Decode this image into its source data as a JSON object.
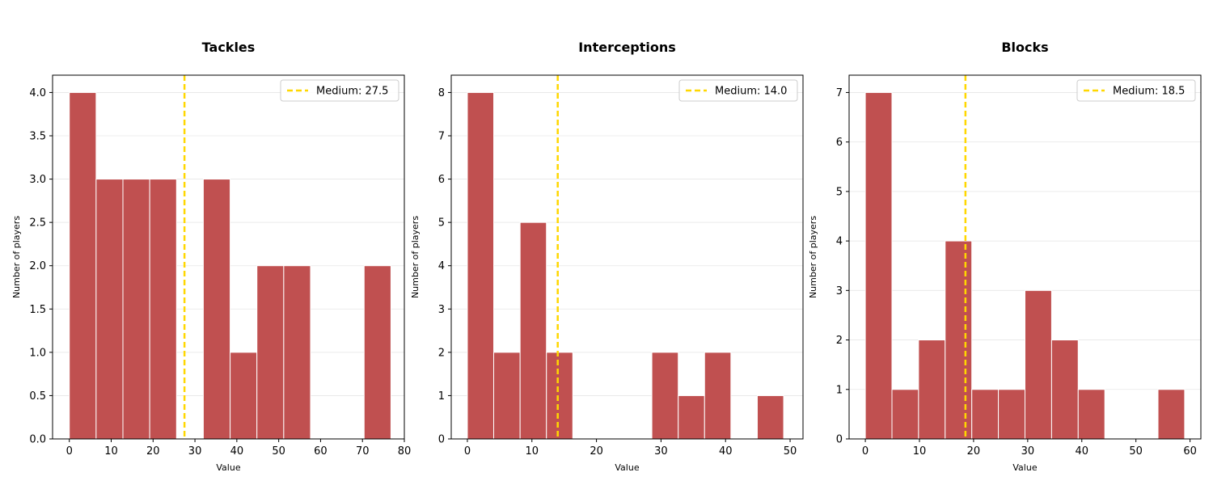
{
  "chart_data": [
    {
      "type": "bar",
      "title": "Tackles",
      "xlabel": "Value",
      "ylabel": "Number of players",
      "xlim": [
        -4,
        80
      ],
      "ylim": [
        0,
        4.2
      ],
      "xticks": [
        0,
        10,
        20,
        30,
        40,
        50,
        60,
        70,
        80
      ],
      "yticks": [
        0.0,
        0.5,
        1.0,
        1.5,
        2.0,
        2.5,
        3.0,
        3.5,
        4.0
      ],
      "ytick_labels": [
        "0.0",
        "0.5",
        "1.0",
        "1.5",
        "2.0",
        "2.5",
        "3.0",
        "3.5",
        "4.0"
      ],
      "bins": [
        {
          "start": 0.0,
          "end": 6.4,
          "count": 4
        },
        {
          "start": 6.4,
          "end": 12.8,
          "count": 3
        },
        {
          "start": 12.8,
          "end": 19.2,
          "count": 3
        },
        {
          "start": 19.2,
          "end": 25.6,
          "count": 3
        },
        {
          "start": 25.6,
          "end": 32.0,
          "count": 0
        },
        {
          "start": 32.0,
          "end": 38.4,
          "count": 3
        },
        {
          "start": 38.4,
          "end": 44.8,
          "count": 1
        },
        {
          "start": 44.8,
          "end": 51.2,
          "count": 2
        },
        {
          "start": 51.2,
          "end": 57.6,
          "count": 2
        },
        {
          "start": 57.6,
          "end": 64.0,
          "count": 0
        },
        {
          "start": 64.0,
          "end": 70.4,
          "count": 0
        },
        {
          "start": 70.4,
          "end": 76.8,
          "count": 2
        }
      ],
      "median": 27.5,
      "legend": "Medium: 27.5",
      "legend_position": "top-right",
      "grid": "y"
    },
    {
      "type": "bar",
      "title": "Interceptions",
      "xlabel": "Value",
      "ylabel": "Number of players",
      "xlim": [
        -2.5,
        52
      ],
      "ylim": [
        0,
        8.4
      ],
      "xticks": [
        0,
        10,
        20,
        30,
        40,
        50
      ],
      "yticks": [
        0,
        1,
        2,
        3,
        4,
        5,
        6,
        7,
        8
      ],
      "ytick_labels": [
        "0",
        "1",
        "2",
        "3",
        "4",
        "5",
        "6",
        "7",
        "8"
      ],
      "bins": [
        {
          "start": 0.0,
          "end": 4.08,
          "count": 8
        },
        {
          "start": 4.08,
          "end": 8.17,
          "count": 2
        },
        {
          "start": 8.17,
          "end": 12.25,
          "count": 5
        },
        {
          "start": 12.25,
          "end": 16.33,
          "count": 2
        },
        {
          "start": 16.33,
          "end": 20.42,
          "count": 0
        },
        {
          "start": 20.42,
          "end": 24.5,
          "count": 0
        },
        {
          "start": 24.5,
          "end": 28.58,
          "count": 0
        },
        {
          "start": 28.58,
          "end": 32.67,
          "count": 2
        },
        {
          "start": 32.67,
          "end": 36.75,
          "count": 1
        },
        {
          "start": 36.75,
          "end": 40.83,
          "count": 2
        },
        {
          "start": 40.83,
          "end": 44.92,
          "count": 0
        },
        {
          "start": 44.92,
          "end": 49.0,
          "count": 1
        }
      ],
      "median": 14.0,
      "legend": "Medium: 14.0",
      "legend_position": "top-right",
      "grid": "y"
    },
    {
      "type": "bar",
      "title": "Blocks",
      "xlabel": "Value",
      "ylabel": "Number of players",
      "xlim": [
        -3,
        62
      ],
      "ylim": [
        0,
        7.35
      ],
      "xticks": [
        0,
        10,
        20,
        30,
        40,
        50,
        60
      ],
      "yticks": [
        0,
        1,
        2,
        3,
        4,
        5,
        6,
        7
      ],
      "ytick_labels": [
        "0",
        "1",
        "2",
        "3",
        "4",
        "5",
        "6",
        "7"
      ],
      "bins": [
        {
          "start": 0.0,
          "end": 4.92,
          "count": 7
        },
        {
          "start": 4.92,
          "end": 9.83,
          "count": 1
        },
        {
          "start": 9.83,
          "end": 14.75,
          "count": 2
        },
        {
          "start": 14.75,
          "end": 19.67,
          "count": 4
        },
        {
          "start": 19.67,
          "end": 24.58,
          "count": 1
        },
        {
          "start": 24.58,
          "end": 29.5,
          "count": 1
        },
        {
          "start": 29.5,
          "end": 34.42,
          "count": 3
        },
        {
          "start": 34.42,
          "end": 39.33,
          "count": 2
        },
        {
          "start": 39.33,
          "end": 44.25,
          "count": 1
        },
        {
          "start": 44.25,
          "end": 49.17,
          "count": 0
        },
        {
          "start": 49.17,
          "end": 54.08,
          "count": 0
        },
        {
          "start": 54.08,
          "end": 59.0,
          "count": 1
        }
      ],
      "median": 18.5,
      "legend": "Medium: 18.5",
      "legend_position": "top-right",
      "grid": "y"
    }
  ],
  "colors": {
    "bar": "#c05050",
    "bar_edge": "#ffffff",
    "median_line": "#ffd700",
    "grid": "#e6e6e6",
    "axis": "#000000"
  }
}
